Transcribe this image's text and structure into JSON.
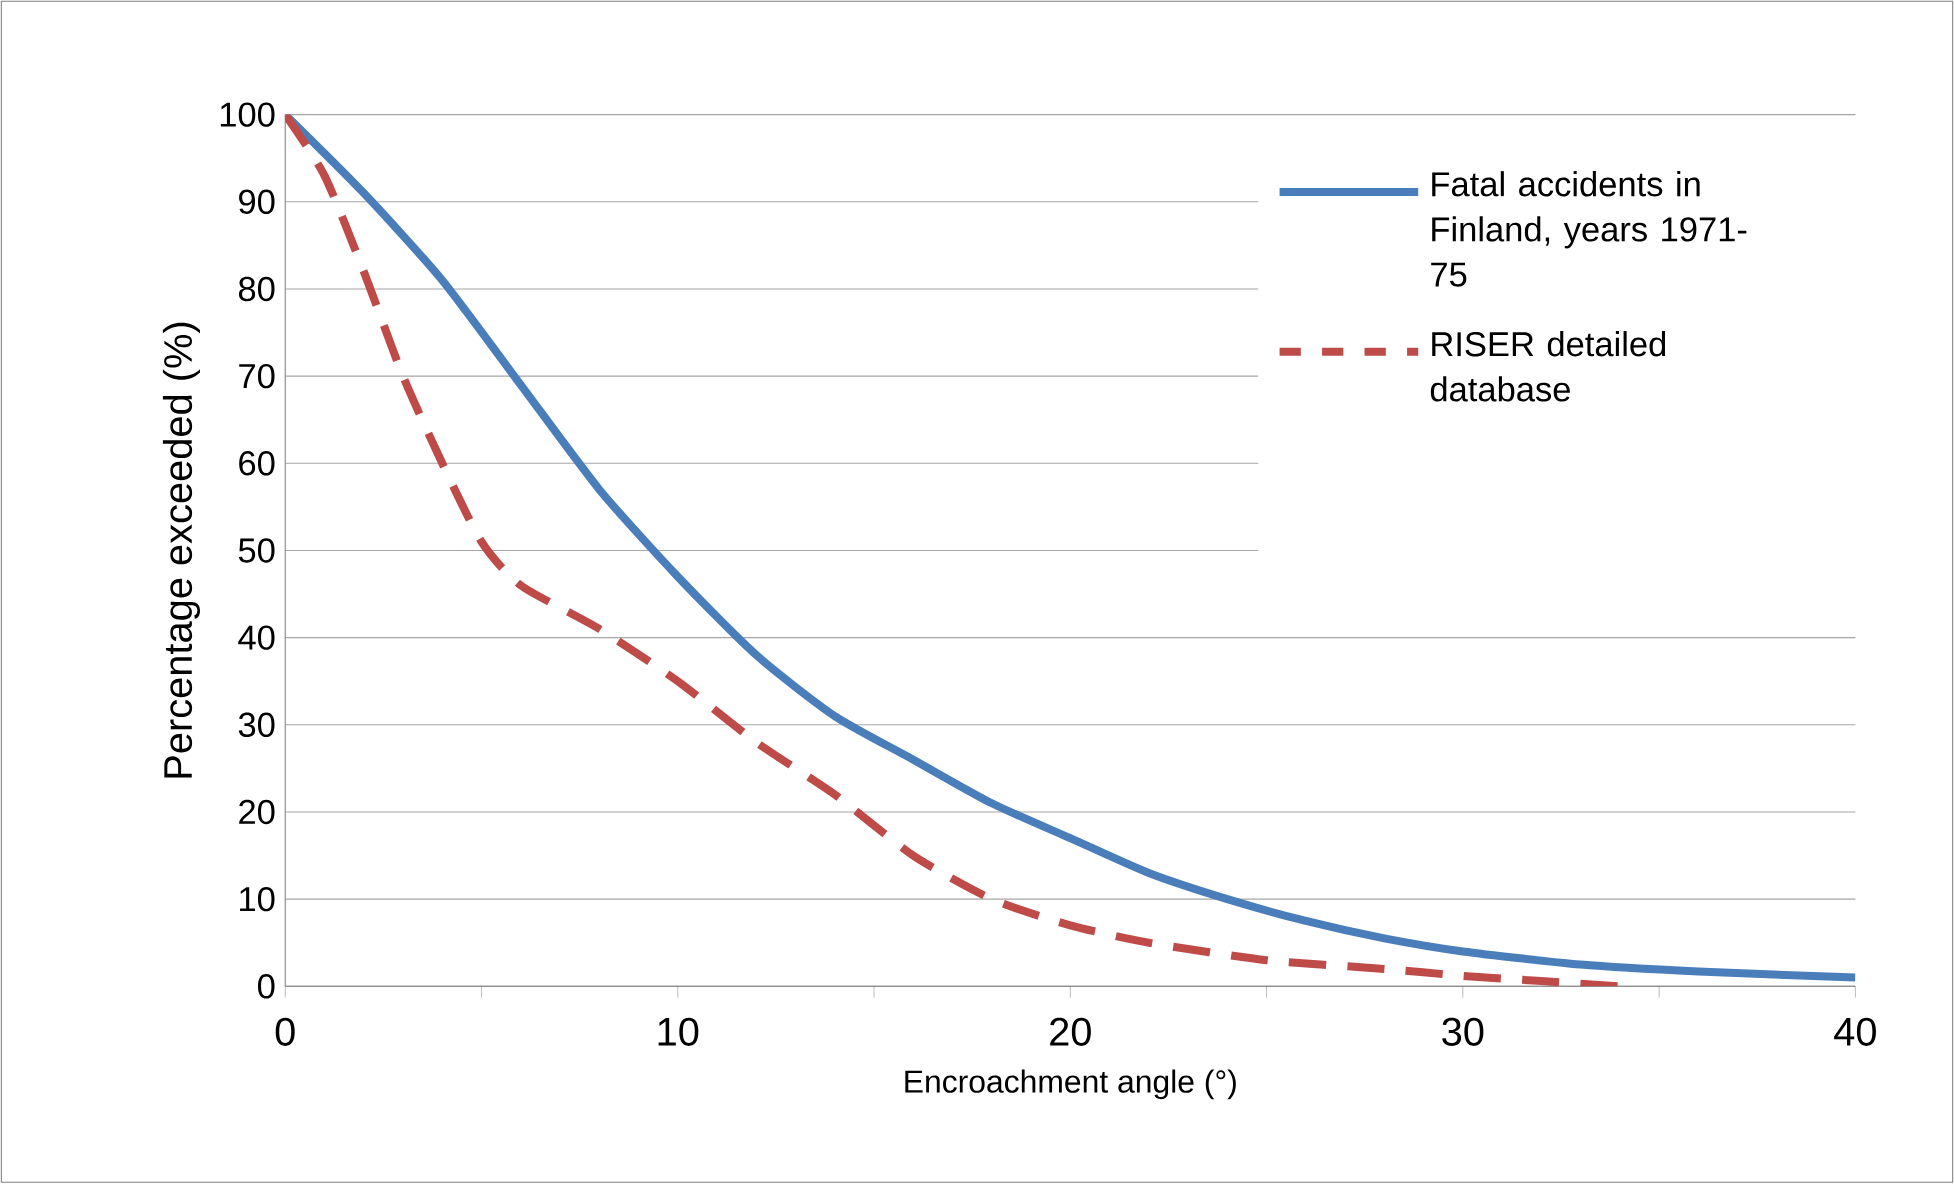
{
  "chart_data": {
    "type": "line",
    "xlabel": "Encroachment angle (°)",
    "ylabel": "Percentage exceeded (%)",
    "xlim": [
      0,
      40
    ],
    "ylim": [
      0,
      100
    ],
    "xticks": [
      0,
      {
        "value": 5,
        "label": null
      },
      10,
      {
        "value": 15,
        "label": null
      },
      20,
      {
        "value": 25,
        "label": null
      },
      30,
      {
        "value": 35,
        "label": null
      },
      40
    ],
    "yticks": [
      0,
      10,
      20,
      30,
      40,
      50,
      60,
      70,
      80,
      90,
      100
    ],
    "grid": "y",
    "legend": "top right",
    "series": [
      {
        "name": "Fatal accidents in Finland, years 1971-75",
        "color": "#4a7ebb",
        "line_style": "solid",
        "x": [
          0,
          2,
          4,
          6,
          8,
          10,
          12,
          14,
          16,
          18,
          20,
          22,
          24,
          26,
          28,
          30,
          33,
          36,
          40
        ],
        "values": [
          100,
          91,
          81,
          69,
          57,
          47,
          38,
          31,
          26,
          21,
          17,
          13,
          10,
          7.5,
          5.5,
          4,
          2.5,
          1.7,
          1
        ]
      },
      {
        "name": "RISER detailed database",
        "color": "#be4b48",
        "line_style": "dashed",
        "x": [
          0,
          1,
          2,
          3,
          4,
          5,
          6,
          8,
          10,
          12,
          14,
          16,
          18,
          20,
          22,
          25,
          28,
          30,
          32,
          34
        ],
        "values": [
          100,
          93,
          82,
          70,
          60,
          51,
          46,
          41,
          35,
          28,
          22,
          15,
          10,
          7,
          5,
          3,
          2,
          1.2,
          0.6,
          0
        ]
      }
    ]
  }
}
